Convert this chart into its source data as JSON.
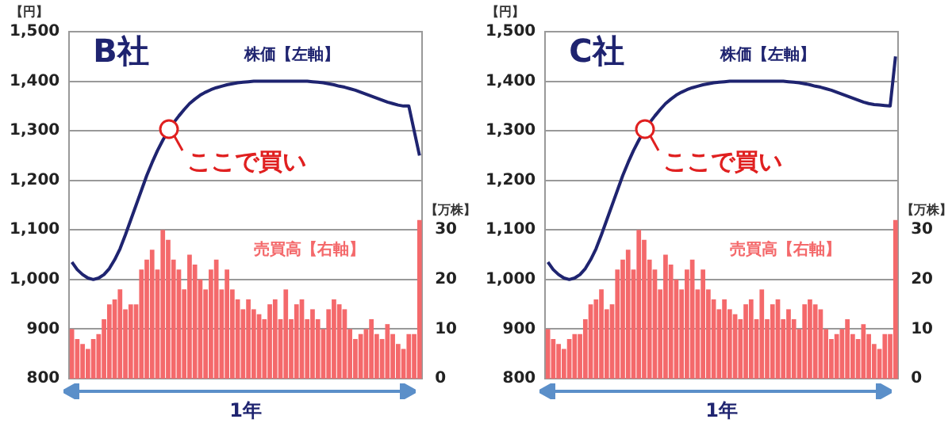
{
  "chart_data": [
    {
      "type": "bar",
      "title": "B社",
      "ylabel": "【円】",
      "y2label": "【万株】",
      "xlabel": "1年",
      "categories": [
        null,
        null,
        null,
        null,
        null,
        null,
        null,
        null,
        null,
        null,
        null,
        null,
        null,
        null,
        null,
        null,
        null,
        null,
        null,
        null,
        null,
        null,
        null,
        null,
        null,
        null,
        null,
        null,
        null,
        null,
        null,
        null,
        null,
        null,
        null,
        null,
        null,
        null,
        null,
        null,
        null,
        null,
        null,
        null,
        null,
        null,
        null,
        null,
        null,
        null,
        null,
        null,
        null,
        null,
        null,
        null,
        null,
        null,
        null,
        null,
        null,
        null,
        null,
        null,
        null,
        null
      ],
      "series": [
        {
          "name": "売買高【右軸】",
          "axis": "y2",
          "color": "#f4696b",
          "values": [
            10,
            8,
            7,
            6,
            8,
            9,
            12,
            15,
            16,
            18,
            14,
            15,
            15,
            22,
            24,
            26,
            22,
            30,
            28,
            24,
            22,
            18,
            25,
            23,
            20,
            18,
            22,
            24,
            18,
            22,
            18,
            16,
            14,
            16,
            14,
            13,
            12,
            15,
            16,
            12,
            18,
            12,
            15,
            16,
            12,
            14,
            12,
            10,
            14,
            16,
            15,
            14,
            10,
            8,
            9,
            10,
            12,
            9,
            8,
            11,
            9,
            7,
            6,
            9,
            9,
            32
          ]
        },
        {
          "name": "株価【左軸】",
          "type": "line",
          "color": "#1f2470",
          "values": [
            1035,
            1020,
            1010,
            1003,
            1000,
            1003,
            1010,
            1022,
            1040,
            1062,
            1090,
            1120,
            1150,
            1180,
            1210,
            1236,
            1260,
            1281,
            1300,
            1316,
            1330,
            1343,
            1355,
            1364,
            1372,
            1378,
            1383,
            1387,
            1390,
            1393,
            1395,
            1397,
            1398,
            1399,
            1400,
            1400,
            1400,
            1400,
            1400,
            1400,
            1400,
            1400,
            1400,
            1400,
            1400,
            1399,
            1398,
            1397,
            1395,
            1393,
            1390,
            1388,
            1385,
            1382,
            1378,
            1374,
            1370,
            1366,
            1362,
            1358,
            1355,
            1352,
            1350,
            1350,
            1300,
            1250
          ]
        }
      ],
      "ylim": [
        800,
        1500
      ],
      "yticks": [
        {
          "value": 800,
          "label": "800"
        },
        {
          "value": 900,
          "label": "900"
        },
        {
          "value": 1000,
          "label": "1,000"
        },
        {
          "value": 1100,
          "label": "1,100"
        },
        {
          "value": 1200,
          "label": "1,200"
        },
        {
          "value": 1300,
          "label": "1,300"
        },
        {
          "value": 1400,
          "label": "1,400"
        },
        {
          "value": 1500,
          "label": "1,500"
        }
      ],
      "y2lim": [
        0,
        70
      ],
      "y2ticks": [
        0,
        10,
        20,
        30
      ],
      "grid": "y",
      "legend": false,
      "annotations": [
        "ここで買い"
      ]
    },
    {
      "type": "bar",
      "title": "C社",
      "ylabel": "【円】",
      "y2label": "【万株】",
      "xlabel": "1年",
      "categories": [
        null,
        null,
        null,
        null,
        null,
        null,
        null,
        null,
        null,
        null,
        null,
        null,
        null,
        null,
        null,
        null,
        null,
        null,
        null,
        null,
        null,
        null,
        null,
        null,
        null,
        null,
        null,
        null,
        null,
        null,
        null,
        null,
        null,
        null,
        null,
        null,
        null,
        null,
        null,
        null,
        null,
        null,
        null,
        null,
        null,
        null,
        null,
        null,
        null,
        null,
        null,
        null,
        null,
        null,
        null,
        null,
        null,
        null,
        null,
        null,
        null,
        null,
        null,
        null,
        null,
        null
      ],
      "series": [
        {
          "name": "売買高【右軸】",
          "axis": "y2",
          "color": "#f4696b",
          "values": [
            10,
            8,
            7,
            6,
            8,
            9,
            9,
            12,
            15,
            16,
            18,
            14,
            15,
            22,
            24,
            26,
            22,
            30,
            28,
            24,
            22,
            18,
            25,
            23,
            20,
            18,
            22,
            24,
            18,
            22,
            18,
            16,
            14,
            16,
            14,
            13,
            12,
            15,
            16,
            12,
            18,
            12,
            15,
            16,
            12,
            14,
            12,
            10,
            15,
            16,
            15,
            14,
            10,
            8,
            9,
            10,
            12,
            9,
            8,
            11,
            9,
            7,
            6,
            9,
            9,
            32
          ]
        },
        {
          "name": "株価【左軸】",
          "type": "line",
          "color": "#1f2470",
          "values": [
            1035,
            1020,
            1010,
            1003,
            1000,
            1003,
            1010,
            1022,
            1040,
            1062,
            1090,
            1120,
            1150,
            1180,
            1210,
            1236,
            1260,
            1281,
            1300,
            1316,
            1330,
            1343,
            1355,
            1364,
            1372,
            1378,
            1383,
            1387,
            1390,
            1393,
            1395,
            1397,
            1398,
            1399,
            1400,
            1400,
            1400,
            1400,
            1400,
            1400,
            1400,
            1400,
            1400,
            1400,
            1400,
            1399,
            1398,
            1397,
            1395,
            1393,
            1390,
            1388,
            1385,
            1382,
            1378,
            1374,
            1370,
            1366,
            1362,
            1358,
            1355,
            1353,
            1352,
            1351,
            1350,
            1450
          ]
        }
      ],
      "ylim": [
        800,
        1500
      ],
      "yticks": [
        {
          "value": 800,
          "label": "800"
        },
        {
          "value": 900,
          "label": "900"
        },
        {
          "value": 1000,
          "label": "1,000"
        },
        {
          "value": 1100,
          "label": "1,100"
        },
        {
          "value": 1200,
          "label": "1,200"
        },
        {
          "value": 1300,
          "label": "1,300"
        },
        {
          "value": 1400,
          "label": "1,400"
        },
        {
          "value": 1500,
          "label": "1,500"
        }
      ],
      "y2lim": [
        0,
        70
      ],
      "y2ticks": [
        0,
        10,
        20,
        30
      ],
      "grid": "y",
      "legend": false,
      "annotations": [
        "ここで買い"
      ]
    }
  ]
}
